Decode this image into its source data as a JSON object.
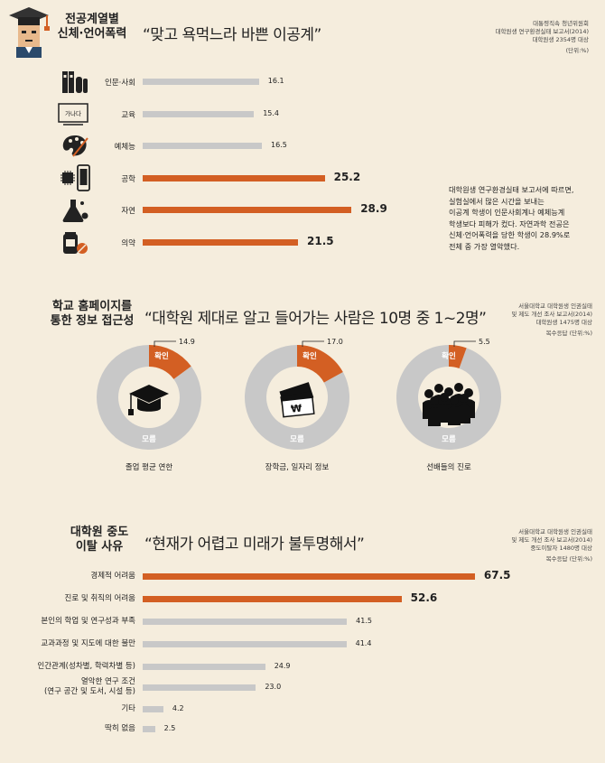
{
  "colors": {
    "background": "#f5eddd",
    "orange": "#d35f23",
    "gray": "#c8c8c8"
  },
  "section1": {
    "title_line1": "전공계열별",
    "title_line2": "신체·언어폭력",
    "quote": "“맞고 욕먹느라 바쁜 이공계”",
    "source": [
      "대통령직속 청년위원회",
      "대학원생 연구환경실태 보고서(2014)",
      "대학원생 2354명 대상",
      "(단위:%)"
    ],
    "note": [
      "대학원생 연구환경실태 보고서에 따르면,",
      "실험실에서 많은 시간을 보내는",
      "이공계 학생이 인문사회계나 예체능계",
      "학생보다 피해가 컸다. 자연과학 전공은",
      "신체·언어폭력을 당한 학생이 28.9%로",
      "전체 중 가장 열악했다."
    ],
    "icons": [
      "books-icon",
      "blackboard-icon",
      "palette-icon",
      "smartphone-chip-icon",
      "flask-icon",
      "pills-icon"
    ],
    "blackboard_text": "가나다"
  },
  "section2": {
    "title_line1": "학교 홈페이지를",
    "title_line2": "통한 정보 접근성",
    "quote": "“대학원 제대로 알고 들어가는 사람은 10명 중 1~2명”",
    "source": [
      "서울대학교 대학원생 인권실태",
      "및 제도 개선 조사 보고서(2014)",
      "대학원생 1475명 대상",
      "복수응답 (단위:%)"
    ]
  },
  "section3": {
    "title_line1": "대학원 중도",
    "title_line2": "이탈 사유",
    "quote": "“현재가 어렵고 미래가 불투명해서”",
    "source": [
      "서울대학교 대학원생 인권실태",
      "및 제도 개선 조사 보고서(2014)",
      "중도이탈자 1480명 대상",
      "복수응답 (단위:%)"
    ]
  },
  "chart_data": [
    {
      "type": "bar",
      "orientation": "horizontal",
      "categories": [
        "인문·사회",
        "교육",
        "예체능",
        "공학",
        "자연",
        "의약"
      ],
      "values": [
        16.1,
        15.4,
        16.5,
        25.2,
        28.9,
        21.5
      ],
      "value_labels": [
        "16.1",
        "15.4",
        "16.5",
        "25.2",
        "28.9",
        "21.5"
      ],
      "highlight": [
        false,
        false,
        false,
        true,
        true,
        true
      ]
    },
    {
      "type": "pie",
      "charts": [
        {
          "caption": "졸업 평균 연한",
          "icon": "graduation-cap-icon",
          "slices": [
            {
              "label": "확인",
              "value": 14.9,
              "value_label": "14.9"
            },
            {
              "label": "모름",
              "value": 85.1
            }
          ]
        },
        {
          "caption": "장학금, 일자리 정보",
          "icon": "money-icon",
          "slices": [
            {
              "label": "확인",
              "value": 17.0,
              "value_label": "17.0"
            },
            {
              "label": "모름",
              "value": 83.0
            }
          ]
        },
        {
          "caption": "선배들의 진로",
          "icon": "crowd-icon",
          "slices": [
            {
              "label": "확인",
              "value": 5.5,
              "value_label": "5.5"
            },
            {
              "label": "모름",
              "value": 94.5
            }
          ]
        }
      ]
    },
    {
      "type": "bar",
      "orientation": "horizontal",
      "categories": [
        "경제적 어려움",
        "진로 및 취직의 어려움",
        "본인의 학업 및 연구성과 부족",
        "교과과정 및 지도에 대한 불만",
        "인간관계(성차별, 학력차별 등)",
        "열악한 연구 조건\n(연구 공간 및 도서, 시설 등)",
        "기타",
        "딱히 없음"
      ],
      "values": [
        67.5,
        52.6,
        41.5,
        41.4,
        24.9,
        23.0,
        4.2,
        2.5
      ],
      "value_labels": [
        "67.5",
        "52.6",
        "41.5",
        "41.4",
        "24.9",
        "23.0",
        "4.2",
        "2.5"
      ],
      "highlight": [
        true,
        true,
        false,
        false,
        false,
        false,
        false,
        false
      ]
    }
  ]
}
